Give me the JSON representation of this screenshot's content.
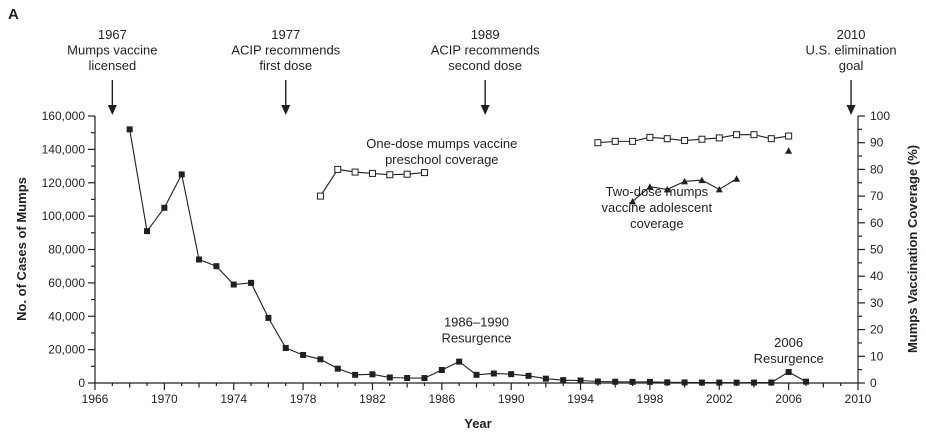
{
  "panel_label": "A",
  "chart_data": {
    "type": "line",
    "title": "",
    "xlabel": "Year",
    "ylabel": "No. of Cases of Mumps",
    "y2label": "Mumps Vaccination Coverage (%)",
    "xlim": [
      1966,
      2010
    ],
    "ylim": [
      0,
      160000
    ],
    "y2lim": [
      0,
      100
    ],
    "grid": false,
    "x_ticks": [
      1966,
      1970,
      1974,
      1978,
      1982,
      1986,
      1990,
      1994,
      1998,
      2002,
      2006,
      2010
    ],
    "y_ticks": [
      0,
      20000,
      40000,
      60000,
      80000,
      100000,
      120000,
      140000,
      160000
    ],
    "y_tick_labels": [
      "0",
      "20,000",
      "40,000",
      "60,000",
      "80,000",
      "100,000",
      "120,000",
      "140,000",
      "160,000"
    ],
    "y2_ticks": [
      0,
      10,
      20,
      30,
      40,
      50,
      60,
      70,
      80,
      90,
      100
    ],
    "series": [
      {
        "axis": "left",
        "marker": "filled-square",
        "x": [
          1968,
          1969,
          1970,
          1971,
          1972,
          1973,
          1974,
          1975,
          1976,
          1977,
          1978,
          1979,
          1980,
          1981,
          1982,
          1983,
          1984,
          1985,
          1986,
          1987,
          1988,
          1989,
          1990,
          1991,
          1992,
          1993,
          1994,
          1995,
          1996,
          1997,
          1998,
          1999,
          2000,
          2001,
          2002,
          2003,
          2004,
          2005,
          2006,
          2007
        ],
        "y": [
          152000,
          91000,
          105000,
          125000,
          74000,
          70000,
          59000,
          60000,
          39000,
          21000,
          16800,
          14200,
          8600,
          4900,
          5200,
          3300,
          3000,
          2950,
          7800,
          12800,
          4900,
          5700,
          5300,
          4300,
          2600,
          1700,
          1500,
          900,
          750,
          680,
          670,
          390,
          340,
          270,
          270,
          230,
          260,
          310,
          6600,
          800
        ]
      },
      {
        "name": "One-dose mumps vaccine preschool coverage",
        "axis": "right",
        "marker": "open-square",
        "segments": [
          {
            "x": [
              1979,
              1980,
              1981,
              1982,
              1983,
              1984,
              1985
            ],
            "y": [
              70,
              80,
              79,
              78.5,
              78,
              78.2,
              78.8
            ]
          },
          {
            "x": [
              1995,
              1996,
              1997,
              1998,
              1999,
              2000,
              2001,
              2002,
              2003,
              2004,
              2005,
              2006
            ],
            "y": [
              90,
              90.5,
              90.5,
              92,
              91.5,
              90.8,
              91.3,
              91.8,
              93,
              93,
              91.5,
              92.5
            ]
          }
        ]
      },
      {
        "name": "Two-dose mumps vaccine adolescent coverage",
        "axis": "right",
        "marker": "filled-triangle",
        "segments": [
          {
            "x": [
              1997,
              1998,
              1999,
              2000,
              2001,
              2002,
              2003
            ],
            "y": [
              68,
              73.5,
              72.5,
              75.5,
              76,
              72.5,
              76.5
            ]
          },
          {
            "x": [
              2006
            ],
            "y": [
              87
            ]
          }
        ]
      }
    ],
    "events": [
      {
        "year": 1967,
        "lines": [
          "1967",
          "Mumps vaccine",
          "licensed"
        ]
      },
      {
        "year": 1977,
        "lines": [
          "1977",
          "ACIP recommends",
          "first dose"
        ]
      },
      {
        "year": 1988.5,
        "lines": [
          "1989",
          "ACIP recommends",
          "second dose"
        ]
      },
      {
        "year": 2009.6,
        "lines": [
          "2010",
          "U.S. elimination",
          "goal"
        ]
      }
    ],
    "annotations": [
      {
        "x": 1988,
        "y": 34000,
        "axis": "left",
        "lines": [
          "1986–1990",
          "Resurgence"
        ]
      },
      {
        "x": 2006,
        "y": 21500,
        "axis": "left",
        "lines": [
          "2006",
          "Resurgence"
        ]
      },
      {
        "x": 1986,
        "y": 88,
        "axis": "right",
        "lines": [
          "One-dose mumps vaccine",
          "preschool coverage"
        ]
      },
      {
        "x": 1998.4,
        "y": 70,
        "axis": "right",
        "lines": [
          "Two-dose mumps",
          "vaccine adolescent",
          "coverage"
        ]
      }
    ]
  }
}
